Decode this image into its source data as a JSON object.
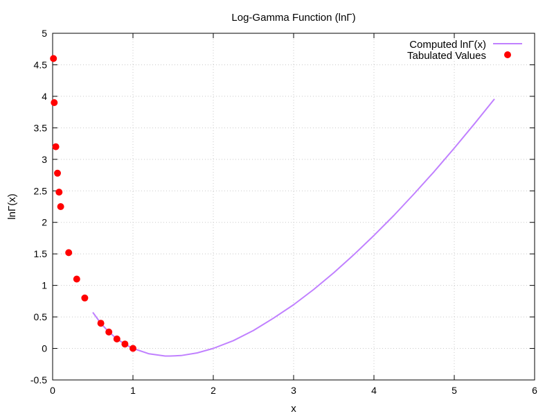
{
  "chart_data": {
    "type": "line",
    "title": "Log-Gamma Function (lnΓ)",
    "xlabel": "x",
    "ylabel": "lnΓ(x)",
    "xlim": [
      0,
      6
    ],
    "ylim": [
      -0.5,
      5
    ],
    "x_ticks": [
      "0",
      "1",
      "2",
      "3",
      "4",
      "5",
      "6"
    ],
    "y_ticks": [
      "-0.5",
      "0",
      "0.5",
      "1",
      "1.5",
      "2",
      "2.5",
      "3",
      "3.5",
      "4",
      "4.5",
      "5"
    ],
    "grid": true,
    "legend_position": "top-right",
    "series": [
      {
        "name": "Computed lnΓ(x)",
        "kind": "line",
        "color": "#c080ff",
        "x": [
          0.5,
          0.6,
          0.7,
          0.8,
          0.9,
          1.0,
          1.2,
          1.4,
          1.46,
          1.6,
          1.8,
          2.0,
          2.25,
          2.5,
          2.75,
          3.0,
          3.25,
          3.5,
          3.75,
          4.0,
          4.25,
          4.5,
          4.75,
          5.0,
          5.25,
          5.5
        ],
        "y": [
          0.572,
          0.398,
          0.261,
          0.152,
          0.066,
          0.0,
          -0.085,
          -0.12,
          -0.121,
          -0.113,
          -0.071,
          0.0,
          0.124,
          0.285,
          0.481,
          0.693,
          0.935,
          1.201,
          1.488,
          1.792,
          2.113,
          2.453,
          2.807,
          3.178,
          3.562,
          3.958
        ]
      },
      {
        "name": "Tabulated Values",
        "kind": "points",
        "color": "#ff0000",
        "x": [
          0.01,
          0.02,
          0.04,
          0.06,
          0.08,
          0.1,
          0.2,
          0.3,
          0.4,
          0.6,
          0.7,
          0.8,
          0.9,
          1.0
        ],
        "y": [
          4.6,
          3.9,
          3.2,
          2.78,
          2.48,
          2.25,
          1.52,
          1.1,
          0.8,
          0.4,
          0.26,
          0.15,
          0.07,
          0.0
        ]
      }
    ]
  }
}
